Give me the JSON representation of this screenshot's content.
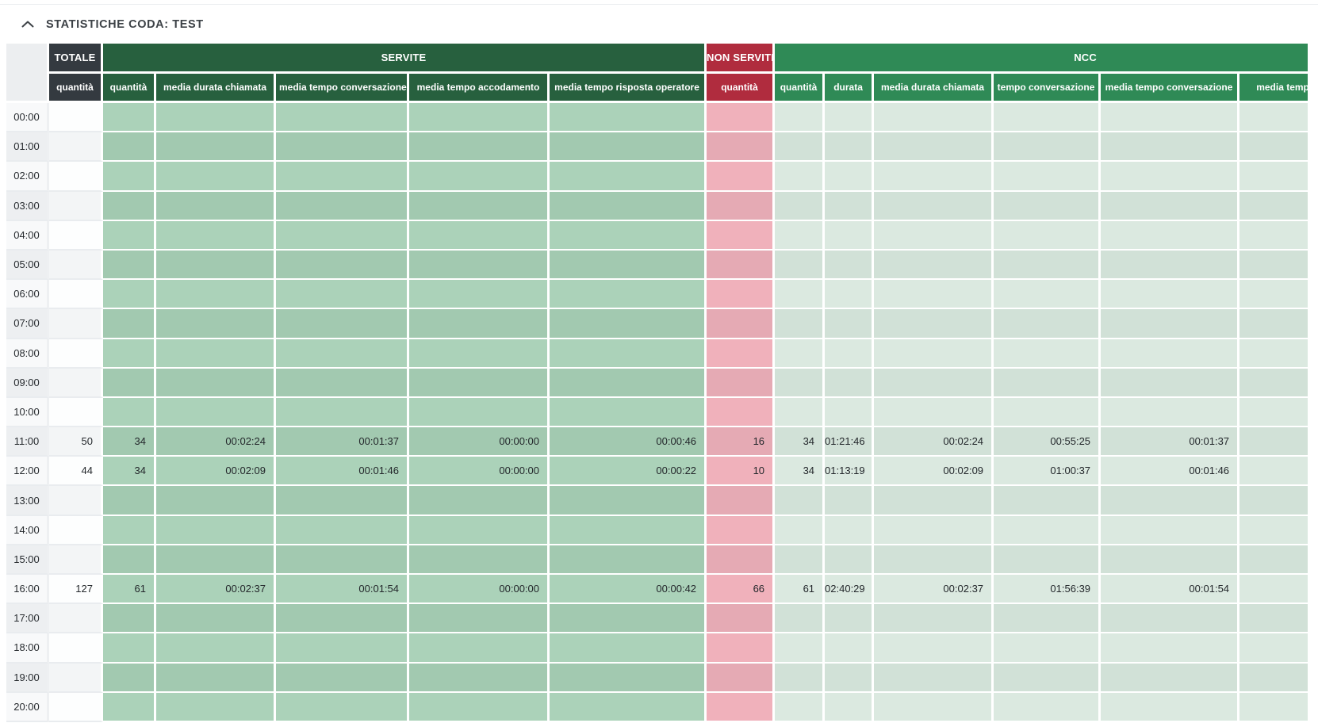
{
  "panel": {
    "title": "STATISTICHE CODA: TEST",
    "collapse_icon": "chevron-up-icon"
  },
  "colors": {
    "header_dark": "#343a40",
    "header_green_servite": "#27603e",
    "header_red_non_servite": "#b02c3e",
    "header_green_ncc": "#2f8a56",
    "body_servite": "#abd2b9",
    "body_non_servite": "#f0b1bb",
    "body_ncc": "#dbe9e0"
  },
  "table": {
    "groups": [
      {
        "label": "TOTALE",
        "style": "dark",
        "sub_style": "dark",
        "body_style": "tot",
        "columns": [
          {
            "id": "totale-quantita",
            "label": "quantità"
          }
        ]
      },
      {
        "label": "SERVITE",
        "style": "green",
        "sub_style": "green",
        "body_style": "srv",
        "columns": [
          {
            "id": "servite-quantita",
            "label": "quantità"
          },
          {
            "id": "servite-media-durata-chiamata",
            "label": "media durata chiamata"
          },
          {
            "id": "servite-media-tempo-conversazione",
            "label": "media tempo conversazione"
          },
          {
            "id": "servite-media-tempo-accodamento",
            "label": "media tempo accodamento"
          },
          {
            "id": "servite-media-tempo-risposta-operatore",
            "label": "media tempo risposta operatore"
          }
        ]
      },
      {
        "label": "NON SERVITE",
        "style": "red",
        "sub_style": "red",
        "body_style": "ns",
        "columns": [
          {
            "id": "non-servite-quantita",
            "label": "quantità"
          }
        ]
      },
      {
        "label": "NCC",
        "style": "ncc",
        "sub_style": "ncc",
        "body_style": "ncc",
        "columns": [
          {
            "id": "ncc-quantita",
            "label": "quantità"
          },
          {
            "id": "ncc-durata",
            "label": "durata"
          },
          {
            "id": "ncc-media-durata-chiamata",
            "label": "media durata chiamata"
          },
          {
            "id": "ncc-tempo-conversazione",
            "label": "tempo conversazione"
          },
          {
            "id": "ncc-media-tempo-conversazione",
            "label": "media tempo conversazione"
          },
          {
            "id": "ncc-media-tempo-accodamento",
            "label": "media tempo accodamento"
          }
        ]
      }
    ],
    "rows": [
      {
        "time": "00:00",
        "cells": [
          "",
          "",
          "",
          "",
          "",
          "",
          "",
          "",
          "",
          "",
          "",
          "",
          ""
        ]
      },
      {
        "time": "01:00",
        "cells": [
          "",
          "",
          "",
          "",
          "",
          "",
          "",
          "",
          "",
          "",
          "",
          "",
          ""
        ]
      },
      {
        "time": "02:00",
        "cells": [
          "",
          "",
          "",
          "",
          "",
          "",
          "",
          "",
          "",
          "",
          "",
          "",
          ""
        ]
      },
      {
        "time": "03:00",
        "cells": [
          "",
          "",
          "",
          "",
          "",
          "",
          "",
          "",
          "",
          "",
          "",
          "",
          ""
        ]
      },
      {
        "time": "04:00",
        "cells": [
          "",
          "",
          "",
          "",
          "",
          "",
          "",
          "",
          "",
          "",
          "",
          "",
          ""
        ]
      },
      {
        "time": "05:00",
        "cells": [
          "",
          "",
          "",
          "",
          "",
          "",
          "",
          "",
          "",
          "",
          "",
          "",
          ""
        ]
      },
      {
        "time": "06:00",
        "cells": [
          "",
          "",
          "",
          "",
          "",
          "",
          "",
          "",
          "",
          "",
          "",
          "",
          ""
        ]
      },
      {
        "time": "07:00",
        "cells": [
          "",
          "",
          "",
          "",
          "",
          "",
          "",
          "",
          "",
          "",
          "",
          "",
          ""
        ]
      },
      {
        "time": "08:00",
        "cells": [
          "",
          "",
          "",
          "",
          "",
          "",
          "",
          "",
          "",
          "",
          "",
          "",
          ""
        ]
      },
      {
        "time": "09:00",
        "cells": [
          "",
          "",
          "",
          "",
          "",
          "",
          "",
          "",
          "",
          "",
          "",
          "",
          ""
        ]
      },
      {
        "time": "10:00",
        "cells": [
          "",
          "",
          "",
          "",
          "",
          "",
          "",
          "",
          "",
          "",
          "",
          "",
          ""
        ]
      },
      {
        "time": "11:00",
        "cells": [
          "50",
          "34",
          "00:02:24",
          "00:01:37",
          "00:00:00",
          "00:00:46",
          "16",
          "34",
          "01:21:46",
          "00:02:24",
          "00:55:25",
          "00:01:37",
          ""
        ]
      },
      {
        "time": "12:00",
        "cells": [
          "44",
          "34",
          "00:02:09",
          "00:01:46",
          "00:00:00",
          "00:00:22",
          "10",
          "34",
          "01:13:19",
          "00:02:09",
          "01:00:37",
          "00:01:46",
          ""
        ]
      },
      {
        "time": "13:00",
        "cells": [
          "",
          "",
          "",
          "",
          "",
          "",
          "",
          "",
          "",
          "",
          "",
          "",
          ""
        ]
      },
      {
        "time": "14:00",
        "cells": [
          "",
          "",
          "",
          "",
          "",
          "",
          "",
          "",
          "",
          "",
          "",
          "",
          ""
        ]
      },
      {
        "time": "15:00",
        "cells": [
          "",
          "",
          "",
          "",
          "",
          "",
          "",
          "",
          "",
          "",
          "",
          "",
          ""
        ]
      },
      {
        "time": "16:00",
        "cells": [
          "127",
          "61",
          "00:02:37",
          "00:01:54",
          "00:00:00",
          "00:00:42",
          "66",
          "61",
          "02:40:29",
          "00:02:37",
          "01:56:39",
          "00:01:54",
          ""
        ]
      },
      {
        "time": "17:00",
        "cells": [
          "",
          "",
          "",
          "",
          "",
          "",
          "",
          "",
          "",
          "",
          "",
          "",
          ""
        ]
      },
      {
        "time": "18:00",
        "cells": [
          "",
          "",
          "",
          "",
          "",
          "",
          "",
          "",
          "",
          "",
          "",
          "",
          ""
        ]
      },
      {
        "time": "19:00",
        "cells": [
          "",
          "",
          "",
          "",
          "",
          "",
          "",
          "",
          "",
          "",
          "",
          "",
          ""
        ]
      },
      {
        "time": "20:00",
        "cells": [
          "",
          "",
          "",
          "",
          "",
          "",
          "",
          "",
          "",
          "",
          "",
          "",
          ""
        ]
      }
    ]
  }
}
